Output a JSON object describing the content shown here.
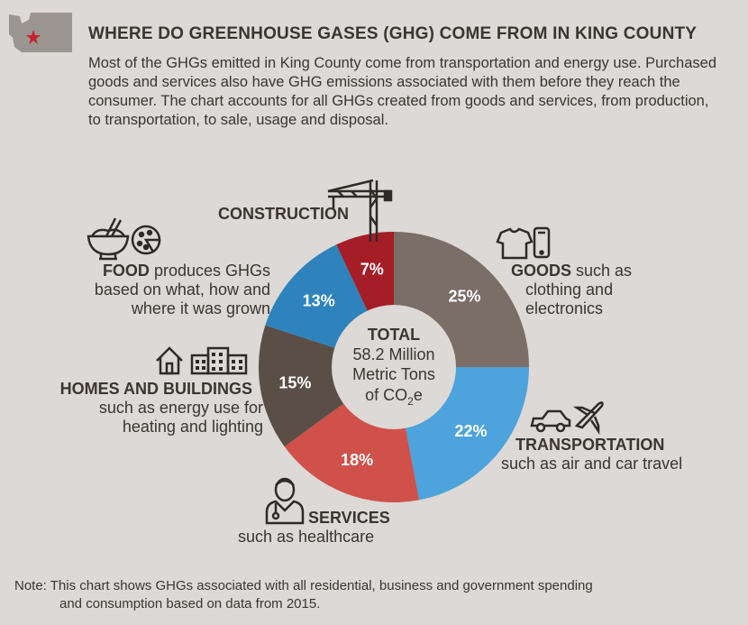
{
  "header": {
    "title": "WHERE DO GREENHOUSE GASES (GHG) COME FROM IN KING COUNTY",
    "intro": "Most of the GHGs emitted in King County come from transportation and energy use. Purchased goods and services also have GHG emissions associated with them before they reach the consumer. The chart accounts for all GHGs created from goods and services, from production, to transportation, to sale, usage and disposal."
  },
  "colors": {
    "background": "#dcd9d6",
    "text": "#3b3530",
    "goods": "#7a6e67",
    "transportation": "#4da3dc",
    "services": "#cf5149",
    "homes": "#5a4e47",
    "food": "#2e83bd",
    "construction": "#a51d26",
    "center": "#dcd9d6"
  },
  "chart_data": {
    "type": "pie",
    "variant": "donut",
    "title": "WHERE DO GREENHOUSE GASES (GHG) COME FROM IN KING COUNTY",
    "categories": [
      "Goods",
      "Transportation",
      "Services",
      "Homes and Buildings",
      "Food",
      "Construction"
    ],
    "values": [
      25,
      22,
      18,
      15,
      13,
      7
    ],
    "value_labels": [
      "25%",
      "22%",
      "18%",
      "15%",
      "13%",
      "7%"
    ],
    "unit": "%",
    "center_label": {
      "heading": "TOTAL",
      "line1": "58.2 Million",
      "line2": "Metric Tons",
      "line3_main": "of CO",
      "line3_sub": "2",
      "line3_end": "e"
    }
  },
  "labels": {
    "construction": {
      "name": "CONSTRUCTION"
    },
    "food": {
      "name": "FOOD",
      "desc1": " produces GHGs",
      "desc2": "based on what, how and",
      "desc3": "where it was grown"
    },
    "goods": {
      "name": "GOODS",
      "desc1": " such as",
      "desc2": "clothing and",
      "desc3": "electronics"
    },
    "homes": {
      "name": "HOMES AND BUILDINGS",
      "desc1": "such as energy use for",
      "desc2": "heating and lighting"
    },
    "transportation": {
      "name": "TRANSPORTATION",
      "desc1": "such as air and car travel"
    },
    "services": {
      "name": "SERVICES",
      "desc1": "such as healthcare"
    }
  },
  "note": {
    "line1": "Note: This chart shows GHGs associated with all residential, business and government spending",
    "line2": "and consumption based on data from 2015."
  }
}
